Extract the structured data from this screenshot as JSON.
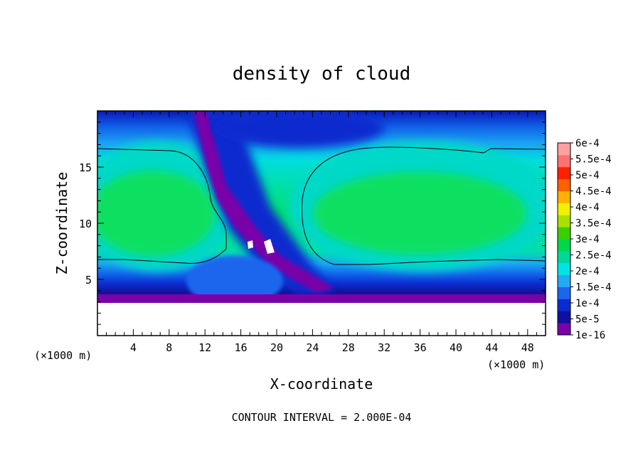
{
  "chart_data": {
    "type": "heatmap",
    "title": "density of cloud",
    "xlabel": "X-coordinate",
    "ylabel": "Z-coordinate",
    "x_unit": "(×1000 m)",
    "z_unit": "(×1000 m)",
    "xlim": [
      0,
      50
    ],
    "ylim": [
      0,
      20
    ],
    "x_ticks": [
      4,
      8,
      12,
      16,
      20,
      24,
      28,
      32,
      36,
      40,
      44,
      48
    ],
    "y_ticks": [
      5,
      10,
      15
    ],
    "footer": "CONTOUR INTERVAL = 2.000E-04",
    "colorbar": {
      "levels": [
        "1e-16",
        "5e-5",
        "1e-4",
        "1.5e-4",
        "2e-4",
        "2.5e-4",
        "3e-4",
        "3.5e-4",
        "4e-4",
        "4.5e-4",
        "5e-4",
        "5.5e-4",
        "6e-4"
      ],
      "colors": [
        "#7a00a8",
        "#1010a0",
        "#0a2ccf",
        "#1a66ee",
        "#22aaf4",
        "#00e4e4",
        "#00d89a",
        "#00d84a",
        "#3ad000",
        "#a8e000",
        "#f0f000",
        "#ffb000",
        "#ff6000",
        "#ff2000",
        "#ff7070",
        "#ffa0a0"
      ]
    },
    "contour_level": 0.0002
  }
}
